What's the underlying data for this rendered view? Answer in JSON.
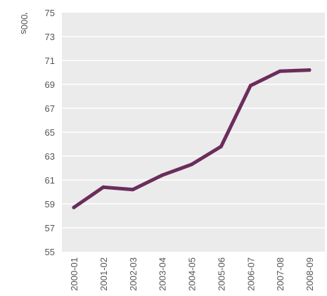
{
  "chart_data": {
    "type": "line",
    "title": "",
    "xlabel": "",
    "ylabel": "'000s",
    "categories": [
      "2000-01",
      "2001-02",
      "2002-03",
      "2003-04",
      "2004-05",
      "2005-06",
      "2006-07",
      "2007-08",
      "2008-09"
    ],
    "series": [
      {
        "values": [
          58.7,
          60.4,
          60.2,
          61.4,
          62.3,
          63.8,
          68.9,
          70.1,
          70.2
        ]
      }
    ],
    "ylim": [
      55,
      75
    ],
    "yticks": [
      "55",
      "57",
      "59",
      "61",
      "63",
      "65",
      "67",
      "69",
      "71",
      "73",
      "75"
    ],
    "grid": true,
    "legend": "none",
    "colors": {
      "line": "#6b2d5c",
      "plot_background": "#ebebeb",
      "gridline": "#ffffff",
      "text": "#555555"
    }
  }
}
